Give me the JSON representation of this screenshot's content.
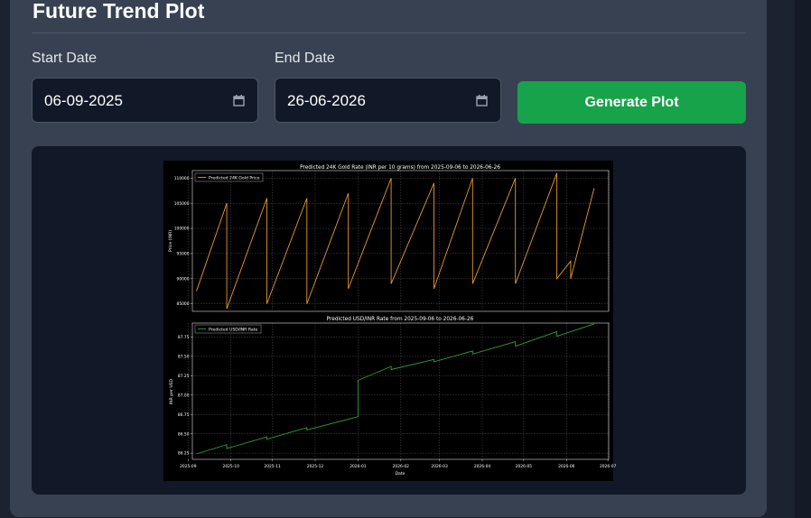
{
  "header": {
    "title": "Future Trend Plot"
  },
  "form": {
    "start_label": "Start Date",
    "start_value": "06-09-2025",
    "end_label": "End Date",
    "end_value": "26-06-2026",
    "button_label": "Generate Plot"
  },
  "colors": {
    "accent_button": "#16a34a",
    "gold_line": "#e69a2e",
    "usd_line": "#2e9e3a"
  },
  "chart_data": [
    {
      "type": "line",
      "title": "Predicted 24K Gold Rate (INR per 10 grams) from 2025-09-06 to 2026-06-26",
      "xlabel": "",
      "ylabel": "Price (INR)",
      "legend": "Predicted 24K Gold Price",
      "legend_position": "top-left",
      "grid": true,
      "ylim": [
        83500,
        111500
      ],
      "yticks": [
        85000,
        90000,
        95000,
        100000,
        105000,
        110000
      ],
      "ytick_labels": [
        "85000",
        "90000",
        "95000",
        "100000",
        "105000",
        "110000"
      ],
      "x_range_days": [
        0,
        293
      ],
      "series": [
        {
          "name": "Predicted 24K Gold Price",
          "x": [
            0,
            22,
            22,
            51,
            51,
            80,
            80,
            110,
            110,
            141,
            141,
            172,
            172,
            200,
            200,
            231,
            231,
            261,
            261,
            271,
            271,
            288
          ],
          "y": [
            87500,
            105000,
            84000,
            106000,
            85000,
            106000,
            85000,
            107000,
            88000,
            110000,
            89000,
            109000,
            88000,
            110000,
            89000,
            110000,
            89000,
            111000,
            90000,
            93500,
            90000,
            108000
          ]
        }
      ]
    },
    {
      "type": "line",
      "title": "Predicted USD/INR Rate from 2025-09-06 to 2026-06-26",
      "xlabel": "Date",
      "ylabel": "INR per USD",
      "legend": "Predicted USD/INR Rate",
      "legend_position": "top-left",
      "grid": true,
      "ylim": [
        86.17,
        87.93
      ],
      "yticks": [
        86.25,
        86.5,
        86.75,
        87.0,
        87.25,
        87.5,
        87.75
      ],
      "ytick_labels": [
        "86.25",
        "86.50",
        "86.75",
        "87.00",
        "87.25",
        "87.50",
        "87.75"
      ],
      "xtick_days": [
        -6,
        25,
        55,
        86,
        117,
        148,
        176,
        207,
        237,
        268,
        298
      ],
      "xtick_labels": [
        "2025-09",
        "2025-10",
        "2025-11",
        "2025-12",
        "2026-01",
        "2026-02",
        "2026-03",
        "2026-04",
        "2026-05",
        "2026-06",
        "2026-07"
      ],
      "series": [
        {
          "name": "Predicted USD/INR Rate",
          "x": [
            0,
            22,
            22,
            51,
            51,
            80,
            80,
            117,
            117,
            141,
            141,
            172,
            172,
            200,
            200,
            231,
            231,
            261,
            261,
            288
          ],
          "y": [
            86.24,
            86.36,
            86.31,
            86.46,
            86.43,
            86.58,
            86.55,
            86.72,
            87.19,
            87.37,
            87.33,
            87.46,
            87.43,
            87.57,
            87.53,
            87.69,
            87.63,
            87.82,
            87.76,
            87.92
          ]
        }
      ]
    }
  ]
}
